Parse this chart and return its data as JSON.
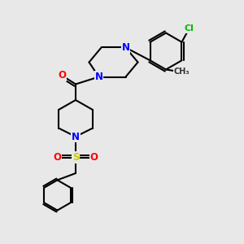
{
  "background_color": "#e8e8e8",
  "atom_colors": {
    "N": "#0000ff",
    "O": "#ff0000",
    "S": "#cccc00",
    "Cl": "#00bb00"
  },
  "bond_color": "#000000",
  "bond_width": 1.5,
  "font_size_atom": 8.5,
  "figsize": [
    3.0,
    3.0
  ],
  "dpi": 100
}
